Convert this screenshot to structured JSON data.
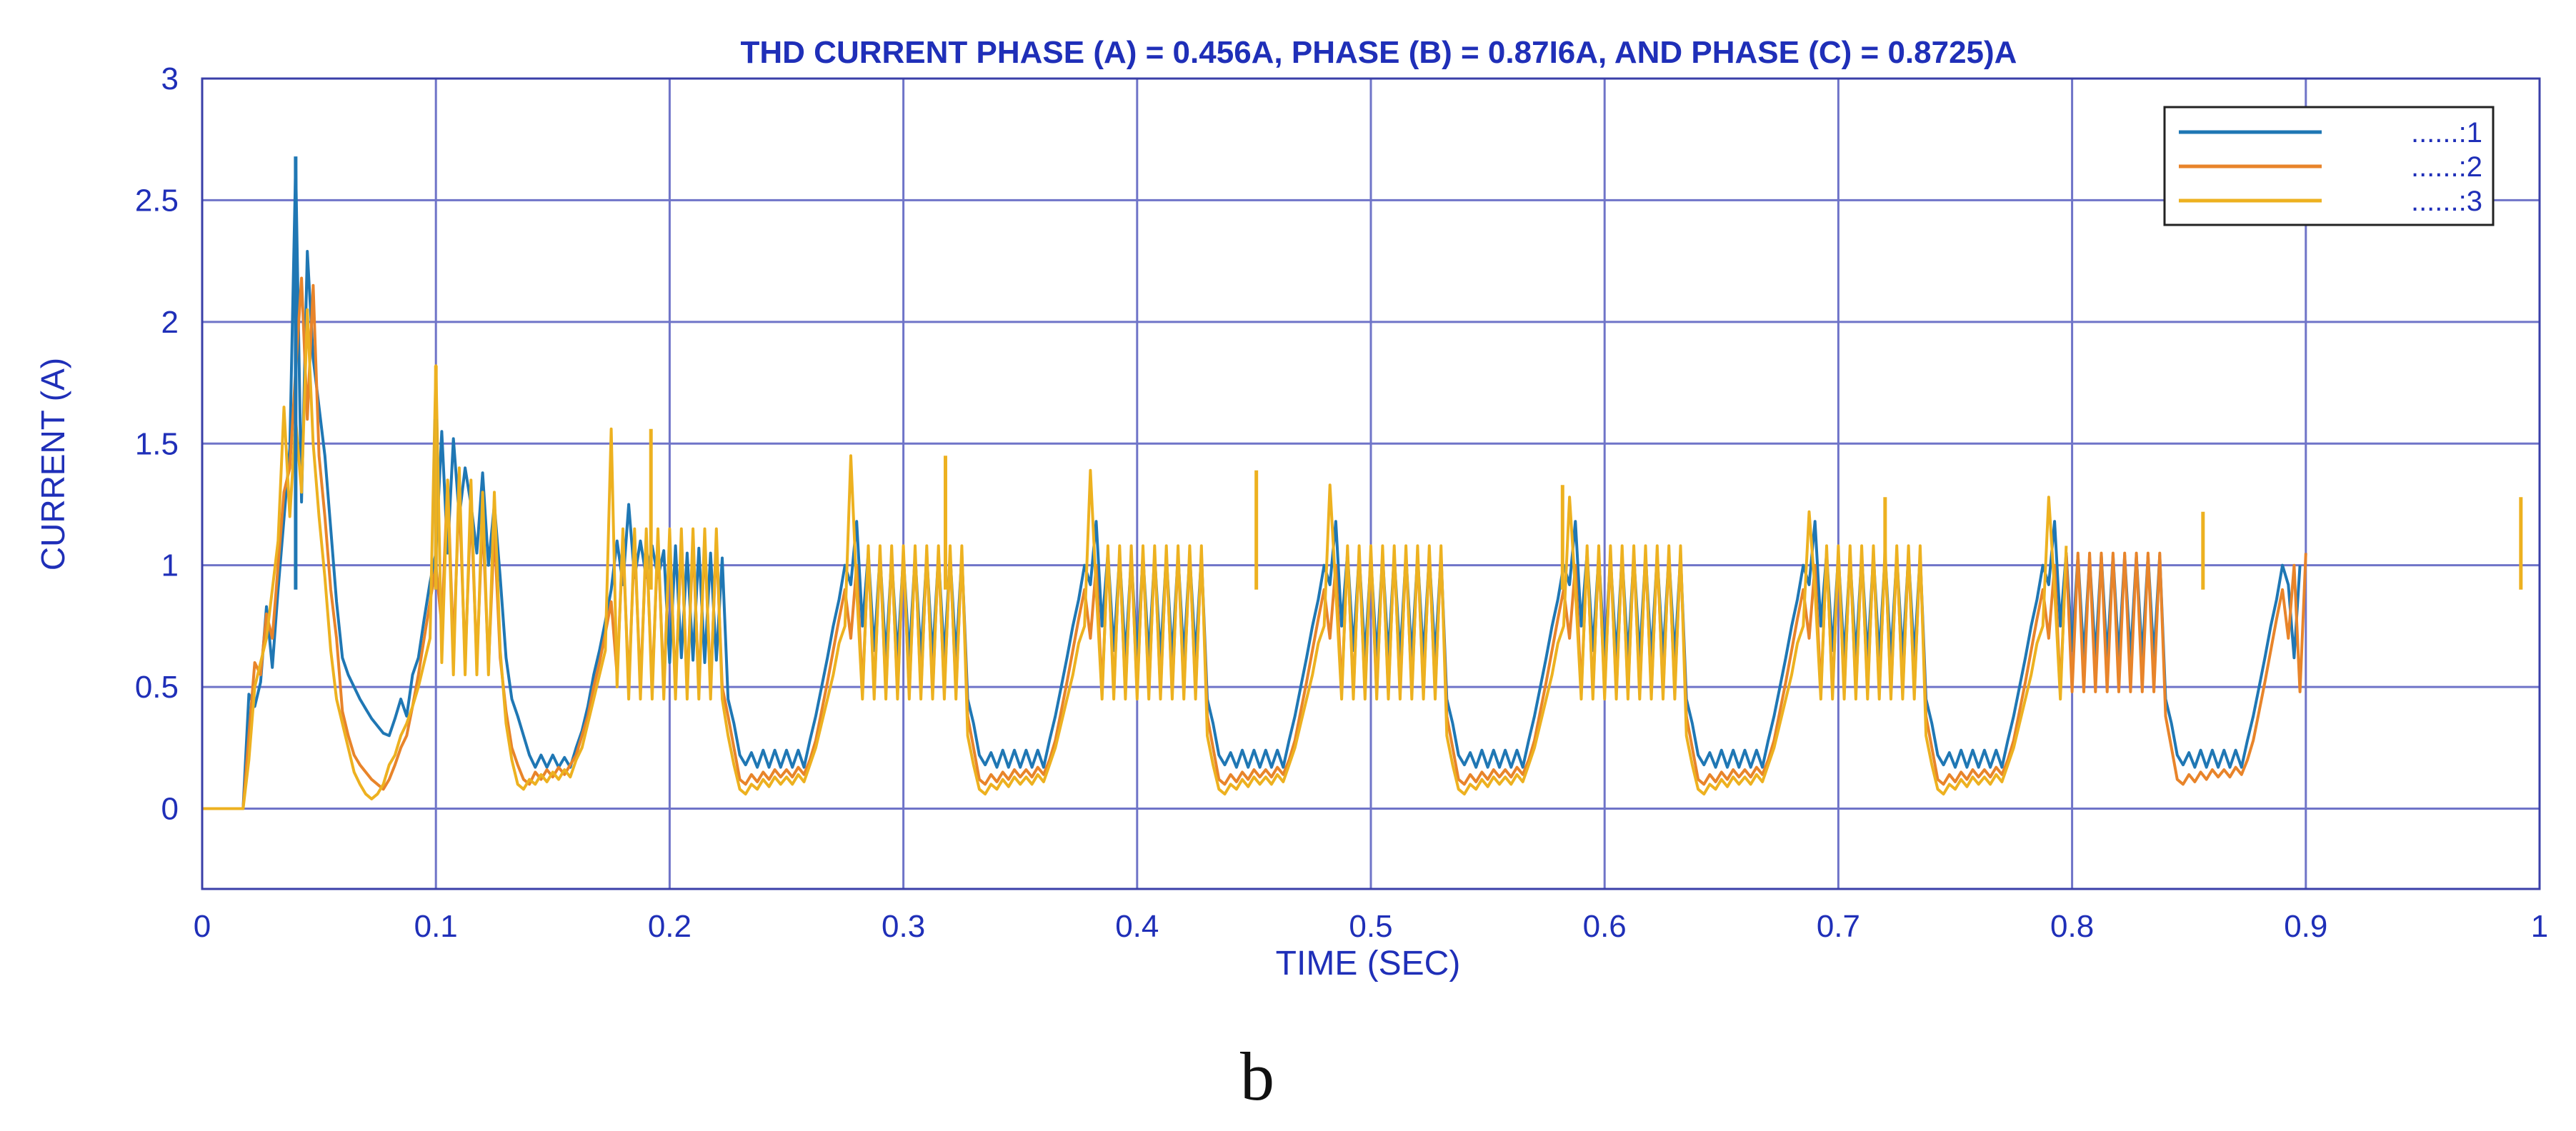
{
  "chart_data": {
    "type": "line",
    "title": "THD CURRENT PHASE (A) = 0.456A, PHASE (B) = 0.87I6A, AND PHASE (C) = 0.8725)A",
    "xlabel": "TIME (SEC)",
    "ylabel": "CURRENT (A)",
    "xlim": [
      0,
      1
    ],
    "ylim": [
      -0.33,
      3
    ],
    "x_ticks": [
      "0",
      "0.1",
      "0.2",
      "0.3",
      "0.4",
      "0.5",
      "0.6",
      "0.7",
      "0.8",
      "0.9",
      "1"
    ],
    "y_ticks": [
      "0",
      "0.5",
      "1",
      "1.5",
      "2",
      "2.5",
      "3"
    ],
    "grid": true,
    "legend_position": "top-right",
    "series": [
      {
        "name": "......:1",
        "color": "#1f77b4"
      },
      {
        "name": "......:2",
        "color": "#e8842a"
      },
      {
        "name": "......:3",
        "color": "#edb120"
      }
    ],
    "sample_interval": 0.0025,
    "x_start": 0,
    "peaks": [
      {
        "series": "......:1",
        "x": 0.04,
        "y": 2.68
      },
      {
        "series": "......:1",
        "x": 0.1,
        "y": 1.6
      },
      {
        "series": "......:3",
        "x": 0.1,
        "y": 1.82
      },
      {
        "series": "......:3",
        "x": 0.192,
        "y": 1.56
      },
      {
        "series": "......:3",
        "x": 0.318,
        "y": 1.45
      },
      {
        "series": "......:3",
        "x": 0.451,
        "y": 1.39
      },
      {
        "series": "......:3",
        "x": 0.582,
        "y": 1.33
      },
      {
        "series": "......:3",
        "x": 0.72,
        "y": 1.28
      },
      {
        "series": "......:3",
        "x": 0.856,
        "y": 1.22
      },
      {
        "series": "......:3",
        "x": 0.992,
        "y": 1.28
      }
    ],
    "phase_a": [
      0.0,
      0.0,
      0.0,
      0.0,
      0.0,
      0.0,
      0.0,
      0.0,
      0.47,
      0.42,
      0.52,
      0.83,
      0.58,
      0.9,
      1.19,
      1.48,
      2.65,
      1.26,
      2.29,
      1.85,
      1.65,
      1.45,
      1.15,
      0.85,
      0.62,
      0.55,
      0.5,
      0.45,
      0.41,
      0.37,
      0.34,
      0.31,
      0.3,
      0.37,
      0.45,
      0.38,
      0.55,
      0.62,
      0.78,
      0.93,
      1.05,
      1.55,
      1.05,
      1.52,
      1.2,
      1.4,
      1.25,
      1.05,
      1.38,
      1.0,
      1.25,
      0.95,
      0.62,
      0.45,
      0.38,
      0.3,
      0.22,
      0.17,
      0.22,
      0.17,
      0.22,
      0.17,
      0.21,
      0.17,
      0.25,
      0.32,
      0.42,
      0.55,
      0.65,
      0.77,
      0.9,
      1.1,
      0.92,
      1.25,
      0.95,
      1.1,
      0.95,
      1.08,
      0.95,
      1.06,
      0.6,
      1.08,
      0.62,
      1.05,
      0.61,
      1.07,
      0.6,
      1.05,
      0.61,
      1.03,
      0.45,
      0.35,
      0.22,
      0.18,
      0.23,
      0.17,
      0.24,
      0.17,
      0.24,
      0.17,
      0.24,
      0.17,
      0.24,
      0.17,
      0.28,
      0.38,
      0.5,
      0.62,
      0.75,
      0.86,
      1.0,
      0.92,
      1.18,
      0.75,
      1.05,
      0.65,
      1.04,
      0.62,
      1.03,
      0.62,
      1.04,
      0.62,
      1.04,
      0.62,
      1.04,
      0.62,
      1.04,
      0.62,
      1.04,
      0.62,
      1.04,
      0.45,
      0.35,
      0.22,
      0.18,
      0.23,
      0.17,
      0.24,
      0.17,
      0.24,
      0.17,
      0.24,
      0.17,
      0.24,
      0.17,
      0.28,
      0.38,
      0.5,
      0.62,
      0.75,
      0.86,
      1.0,
      0.92,
      1.18,
      0.75,
      1.05,
      0.65,
      1.04,
      0.62,
      1.03,
      0.62,
      1.04,
      0.62,
      1.04,
      0.62,
      1.04,
      0.62,
      1.04,
      0.62,
      1.04,
      0.62,
      1.04,
      0.45,
      0.35,
      0.22,
      0.18,
      0.23,
      0.17,
      0.24,
      0.17,
      0.24,
      0.17,
      0.24,
      0.17,
      0.24,
      0.17,
      0.28,
      0.38,
      0.5,
      0.62,
      0.75,
      0.86,
      1.0,
      0.92,
      1.18,
      0.75,
      1.05,
      0.65,
      1.04,
      0.62,
      1.03,
      0.62,
      1.04,
      0.62,
      1.04,
      0.62,
      1.04,
      0.62,
      1.04,
      0.62,
      1.04,
      0.62,
      1.04,
      0.45,
      0.35,
      0.22,
      0.18,
      0.23,
      0.17,
      0.24,
      0.17,
      0.24,
      0.17,
      0.24,
      0.17,
      0.24,
      0.17,
      0.28,
      0.38,
      0.5,
      0.62,
      0.75,
      0.86,
      1.0,
      0.92,
      1.18,
      0.75,
      1.05,
      0.65,
      1.04,
      0.62,
      1.03,
      0.62,
      1.04,
      0.62,
      1.04,
      0.62,
      1.04,
      0.62,
      1.04,
      0.62,
      1.04,
      0.62,
      1.04,
      0.45,
      0.35,
      0.22,
      0.18,
      0.23,
      0.17,
      0.24,
      0.17,
      0.24,
      0.17,
      0.24,
      0.17,
      0.24,
      0.17,
      0.28,
      0.38,
      0.5,
      0.62,
      0.75,
      0.86,
      1.0,
      0.92,
      1.18,
      0.75,
      1.05,
      0.65,
      1.04,
      0.62,
      1.03,
      0.62,
      1.04,
      0.62,
      1.04,
      0.62,
      1.04,
      0.62,
      1.04,
      0.62,
      1.04,
      0.62,
      1.04,
      0.45,
      0.35,
      0.22,
      0.18,
      0.23,
      0.17,
      0.24,
      0.17,
      0.24,
      0.17,
      0.24,
      0.17,
      0.24,
      0.17,
      0.28,
      0.38,
      0.5,
      0.62,
      0.75,
      0.86,
      1.0,
      0.92,
      1.18,
      0.75,
      1.05,
      0.65,
      1.04,
      0.62,
      1.03,
      0.62,
      1.04,
      0.62,
      1.04,
      0.62,
      1.04,
      0.62,
      1.04,
      0.62,
      1.04,
      0.62,
      1.04,
      0.45,
      0.35,
      0.22,
      0.18,
      0.23,
      0.17,
      0.24,
      0.17,
      0.24,
      0.17,
      0.24,
      0.17,
      0.24,
      0.17,
      0.28,
      0.38,
      0.5,
      0.62,
      0.75,
      0.86,
      1.0,
      0.92,
      0.62,
      1.0
    ],
    "phase_b": [
      0.0,
      0.0,
      0.0,
      0.0,
      0.0,
      0.0,
      0.0,
      0.0,
      0.3,
      0.6,
      0.55,
      0.8,
      0.7,
      1.0,
      1.3,
      1.4,
      1.8,
      2.18,
      1.6,
      2.15,
      1.45,
      1.2,
      0.9,
      0.7,
      0.4,
      0.3,
      0.22,
      0.18,
      0.15,
      0.12,
      0.1,
      0.08,
      0.12,
      0.18,
      0.25,
      0.3,
      0.42,
      0.55,
      0.7,
      0.85,
      1.0,
      0.75,
      1.35,
      0.65,
      1.3,
      0.6,
      1.25,
      0.6,
      1.2,
      0.58,
      1.15,
      0.62,
      0.4,
      0.25,
      0.18,
      0.12,
      0.1,
      0.15,
      0.12,
      0.16,
      0.13,
      0.17,
      0.14,
      0.18,
      0.22,
      0.3,
      0.38,
      0.5,
      0.6,
      0.72,
      0.85,
      0.55,
      1.1,
      0.5,
      1.1,
      0.5,
      1.1,
      0.5,
      1.1,
      0.5,
      1.1,
      0.5,
      1.1,
      0.5,
      1.1,
      0.5,
      1.1,
      0.5,
      1.1,
      0.5,
      0.38,
      0.25,
      0.12,
      0.1,
      0.14,
      0.11,
      0.15,
      0.12,
      0.16,
      0.13,
      0.16,
      0.13,
      0.17,
      0.14,
      0.2,
      0.28,
      0.4,
      0.52,
      0.65,
      0.78,
      0.9,
      0.7,
      1.0,
      0.48,
      1.05,
      0.48,
      1.05,
      0.48,
      1.05,
      0.48,
      1.05,
      0.48,
      1.05,
      0.48,
      1.05,
      0.48,
      1.05,
      0.48,
      1.05,
      0.48,
      1.05,
      0.38,
      0.25,
      0.12,
      0.1,
      0.14,
      0.11,
      0.15,
      0.12,
      0.16,
      0.13,
      0.16,
      0.13,
      0.17,
      0.14,
      0.2,
      0.28,
      0.4,
      0.52,
      0.65,
      0.78,
      0.9,
      0.7,
      1.0,
      0.48,
      1.05,
      0.48,
      1.05,
      0.48,
      1.05,
      0.48,
      1.05,
      0.48,
      1.05,
      0.48,
      1.05,
      0.48,
      1.05,
      0.48,
      1.05,
      0.48,
      1.05,
      0.38,
      0.25,
      0.12,
      0.1,
      0.14,
      0.11,
      0.15,
      0.12,
      0.16,
      0.13,
      0.16,
      0.13,
      0.17,
      0.14,
      0.2,
      0.28,
      0.4,
      0.52,
      0.65,
      0.78,
      0.9,
      0.7,
      1.0,
      0.48,
      1.05,
      0.48,
      1.05,
      0.48,
      1.05,
      0.48,
      1.05,
      0.48,
      1.05,
      0.48,
      1.05,
      0.48,
      1.05,
      0.48,
      1.05,
      0.48,
      1.05,
      0.38,
      0.25,
      0.12,
      0.1,
      0.14,
      0.11,
      0.15,
      0.12,
      0.16,
      0.13,
      0.16,
      0.13,
      0.17,
      0.14,
      0.2,
      0.28,
      0.4,
      0.52,
      0.65,
      0.78,
      0.9,
      0.7,
      1.0,
      0.48,
      1.05,
      0.48,
      1.05,
      0.48,
      1.05,
      0.48,
      1.05,
      0.48,
      1.05,
      0.48,
      1.05,
      0.48,
      1.05,
      0.48,
      1.05,
      0.48,
      1.05,
      0.38,
      0.25,
      0.12,
      0.1,
      0.14,
      0.11,
      0.15,
      0.12,
      0.16,
      0.13,
      0.16,
      0.13,
      0.17,
      0.14,
      0.2,
      0.28,
      0.4,
      0.52,
      0.65,
      0.78,
      0.9,
      0.7,
      1.0,
      0.48,
      1.05,
      0.48,
      1.05,
      0.48,
      1.05,
      0.48,
      1.05,
      0.48,
      1.05,
      0.48,
      1.05,
      0.48,
      1.05,
      0.48,
      1.05,
      0.48,
      1.05,
      0.38,
      0.25,
      0.12,
      0.1,
      0.14,
      0.11,
      0.15,
      0.12,
      0.16,
      0.13,
      0.16,
      0.13,
      0.17,
      0.14,
      0.2,
      0.28,
      0.4,
      0.52,
      0.65,
      0.78,
      0.9,
      0.7,
      1.0,
      0.48,
      1.05,
      0.48,
      1.05,
      0.48,
      1.05,
      0.48,
      1.05,
      0.48,
      1.05,
      0.48,
      1.05,
      0.48,
      1.05,
      0.48,
      1.05,
      0.48,
      1.05,
      0.38,
      0.25,
      0.12,
      0.1,
      0.14,
      0.11,
      0.15,
      0.12,
      0.16,
      0.13,
      0.16,
      0.13,
      0.17,
      0.14,
      0.2,
      0.28,
      0.4,
      0.52,
      0.65,
      0.78,
      0.9,
      0.7,
      1.0,
      0.48,
      1.05
    ],
    "phase_c": [
      0.0,
      0.0,
      0.0,
      0.0,
      0.0,
      0.0,
      0.0,
      0.0,
      0.2,
      0.5,
      0.6,
      0.7,
      0.9,
      1.1,
      1.65,
      1.2,
      1.6,
      1.3,
      2.05,
      1.5,
      1.2,
      0.95,
      0.65,
      0.45,
      0.35,
      0.25,
      0.15,
      0.1,
      0.06,
      0.04,
      0.06,
      0.1,
      0.18,
      0.22,
      0.3,
      0.35,
      0.42,
      0.5,
      0.6,
      0.7,
      1.82,
      0.6,
      1.35,
      0.55,
      1.4,
      0.55,
      1.35,
      0.55,
      1.3,
      0.55,
      1.3,
      0.65,
      0.35,
      0.2,
      0.1,
      0.08,
      0.12,
      0.1,
      0.14,
      0.11,
      0.15,
      0.12,
      0.16,
      0.13,
      0.2,
      0.25,
      0.35,
      0.45,
      0.55,
      0.65,
      1.56,
      0.5,
      1.15,
      0.45,
      1.15,
      0.45,
      1.15,
      0.45,
      1.15,
      0.45,
      1.15,
      0.45,
      1.15,
      0.45,
      1.15,
      0.45,
      1.15,
      0.45,
      1.15,
      0.45,
      0.3,
      0.18,
      0.08,
      0.06,
      0.1,
      0.08,
      0.12,
      0.09,
      0.13,
      0.1,
      0.13,
      0.1,
      0.14,
      0.11,
      0.18,
      0.25,
      0.35,
      0.45,
      0.55,
      0.68,
      0.75,
      1.45,
      0.9,
      0.45,
      1.08,
      0.45,
      1.08,
      0.45,
      1.08,
      0.45,
      1.08,
      0.45,
      1.08,
      0.45,
      1.08,
      0.45,
      1.08,
      0.45,
      1.08,
      0.45,
      1.08,
      0.3,
      0.18,
      0.08,
      0.06,
      0.1,
      0.08,
      0.12,
      0.09,
      0.13,
      0.1,
      0.13,
      0.1,
      0.14,
      0.11,
      0.18,
      0.25,
      0.35,
      0.45,
      0.55,
      0.68,
      0.75,
      1.39,
      0.9,
      0.45,
      1.08,
      0.45,
      1.08,
      0.45,
      1.08,
      0.45,
      1.08,
      0.45,
      1.08,
      0.45,
      1.08,
      0.45,
      1.08,
      0.45,
      1.08,
      0.45,
      1.08,
      0.3,
      0.18,
      0.08,
      0.06,
      0.1,
      0.08,
      0.12,
      0.09,
      0.13,
      0.1,
      0.13,
      0.1,
      0.14,
      0.11,
      0.18,
      0.25,
      0.35,
      0.45,
      0.55,
      0.68,
      0.75,
      1.33,
      0.9,
      0.45,
      1.08,
      0.45,
      1.08,
      0.45,
      1.08,
      0.45,
      1.08,
      0.45,
      1.08,
      0.45,
      1.08,
      0.45,
      1.08,
      0.45,
      1.08,
      0.45,
      1.08,
      0.3,
      0.18,
      0.08,
      0.06,
      0.1,
      0.08,
      0.12,
      0.09,
      0.13,
      0.1,
      0.13,
      0.1,
      0.14,
      0.11,
      0.18,
      0.25,
      0.35,
      0.45,
      0.55,
      0.68,
      0.75,
      1.28,
      0.9,
      0.45,
      1.08,
      0.45,
      1.08,
      0.45,
      1.08,
      0.45,
      1.08,
      0.45,
      1.08,
      0.45,
      1.08,
      0.45,
      1.08,
      0.45,
      1.08,
      0.45,
      1.08,
      0.3,
      0.18,
      0.08,
      0.06,
      0.1,
      0.08,
      0.12,
      0.09,
      0.13,
      0.1,
      0.13,
      0.1,
      0.14,
      0.11,
      0.18,
      0.25,
      0.35,
      0.45,
      0.55,
      0.68,
      0.75,
      1.22,
      0.9,
      0.45,
      1.08,
      0.45,
      1.08,
      0.45,
      1.08,
      0.45,
      1.08,
      0.45,
      1.08,
      0.45,
      1.08,
      0.45,
      1.08,
      0.45,
      1.08,
      0.45,
      1.08,
      0.3,
      0.18,
      0.08,
      0.06,
      0.1,
      0.08,
      0.12,
      0.09,
      0.13,
      0.1,
      0.13,
      0.1,
      0.14,
      0.11,
      0.18,
      0.25,
      0.35,
      0.45,
      0.55,
      0.68,
      0.75,
      1.28,
      0.9,
      0.45,
      1.08
    ]
  },
  "figure": {
    "panel_label": "b"
  }
}
